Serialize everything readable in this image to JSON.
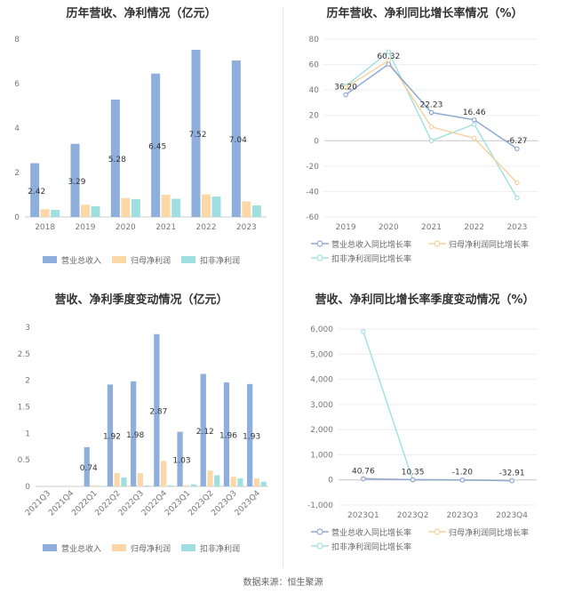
{
  "colors": {
    "revenue": "#8eaedc",
    "net": "#fbd8a6",
    "deducted": "#9fdfe0",
    "axis_text": "#777777",
    "grid": "#eeeeee",
    "label": "#333333"
  },
  "source": "数据来源：恒生聚源",
  "chart_data": [
    {
      "type": "bar",
      "title": "历年营收、净利情况（亿元）",
      "categories": [
        "2018",
        "2019",
        "2020",
        "2021",
        "2022",
        "2023"
      ],
      "series": [
        {
          "name": "营业总收入",
          "values": [
            2.42,
            3.29,
            5.28,
            6.45,
            7.52,
            7.04
          ]
        },
        {
          "name": "归母净利润",
          "values": [
            0.35,
            0.55,
            0.85,
            1.0,
            1.02,
            0.7
          ]
        },
        {
          "name": "扣非净利润",
          "values": [
            0.32,
            0.48,
            0.8,
            0.82,
            0.92,
            0.52
          ]
        }
      ],
      "data_labels": [
        "2.42",
        "3.29",
        "5.28",
        "6.45",
        "7.52",
        "7.04"
      ],
      "ylim": [
        0,
        8
      ],
      "yticks": [
        "0",
        "2",
        "4",
        "6",
        "8"
      ],
      "grid": false,
      "legend_placement": "bottom"
    },
    {
      "type": "line",
      "title": "历年营收、净利同比增长率情况（%）",
      "categories": [
        "2019",
        "2020",
        "2021",
        "2022",
        "2023"
      ],
      "series": [
        {
          "name": "营业总收入同比增长率",
          "values": [
            36.2,
            60.32,
            22.23,
            16.46,
            -6.27
          ]
        },
        {
          "name": "归母净利润同比增长率",
          "values": [
            42,
            63,
            11,
            2,
            -33
          ]
        },
        {
          "name": "扣非净利润同比增长率",
          "values": [
            43,
            70,
            0,
            13,
            -45
          ]
        }
      ],
      "data_labels": [
        "36.20",
        "60.32",
        "22.23",
        "16.46",
        "-6.27"
      ],
      "ylim": [
        -60,
        80
      ],
      "yticks": [
        "-60",
        "-40",
        "-20",
        "0",
        "20",
        "40",
        "60",
        "80"
      ],
      "grid": true,
      "legend_placement": "bottom"
    },
    {
      "type": "bar",
      "title": "营收、净利季度变动情况（亿元）",
      "categories": [
        "2021Q3",
        "2021Q4",
        "2022Q1",
        "2022Q2",
        "2022Q3",
        "2022Q4",
        "2023Q1",
        "2023Q2",
        "2023Q3",
        "2023Q4"
      ],
      "series": [
        {
          "name": "营业总收入",
          "values": [
            0,
            0,
            0.74,
            1.92,
            1.98,
            2.87,
            1.03,
            2.12,
            1.96,
            1.93
          ]
        },
        {
          "name": "归母净利润",
          "values": [
            0,
            0,
            0.02,
            0.25,
            0.25,
            0.48,
            0.02,
            0.3,
            0.18,
            0.15
          ]
        },
        {
          "name": "扣非净利润",
          "values": [
            0,
            0,
            0.01,
            0.17,
            0.02,
            0.02,
            0.04,
            0.21,
            0.15,
            0.09
          ]
        }
      ],
      "data_labels": [
        "",
        "",
        "0.74",
        "1.92",
        "1.98",
        "2.87",
        "1.03",
        "2.12",
        "1.96",
        "1.93"
      ],
      "ylim": [
        0,
        3
      ],
      "yticks": [
        "0",
        "0.5",
        "1",
        "1.5",
        "2",
        "2.5",
        "3"
      ],
      "grid": false,
      "legend_placement": "bottom"
    },
    {
      "type": "line",
      "title": "营收、净利同比增长率季度变动情况（%）",
      "categories": [
        "2023Q1",
        "2023Q2",
        "2023Q3",
        "2023Q4"
      ],
      "series": [
        {
          "name": "营业总收入同比增长率",
          "values": [
            40.76,
            10.35,
            -1.2,
            -32.91
          ]
        },
        {
          "name": "归母净利润同比增长率",
          "values": [
            60,
            5,
            -10,
            -20
          ]
        },
        {
          "name": "扣非净利润同比增长率",
          "values": [
            5900,
            -10,
            -5,
            -25
          ]
        }
      ],
      "data_labels": [
        "40.76",
        "10.35",
        "-1.20",
        "-32.91"
      ],
      "ylim": [
        -1000,
        6000
      ],
      "yticks": [
        "-1,000",
        "0",
        "1,000",
        "2,000",
        "3,000",
        "4,000",
        "5,000",
        "6,000"
      ],
      "grid": true,
      "legend_placement": "bottom"
    }
  ]
}
